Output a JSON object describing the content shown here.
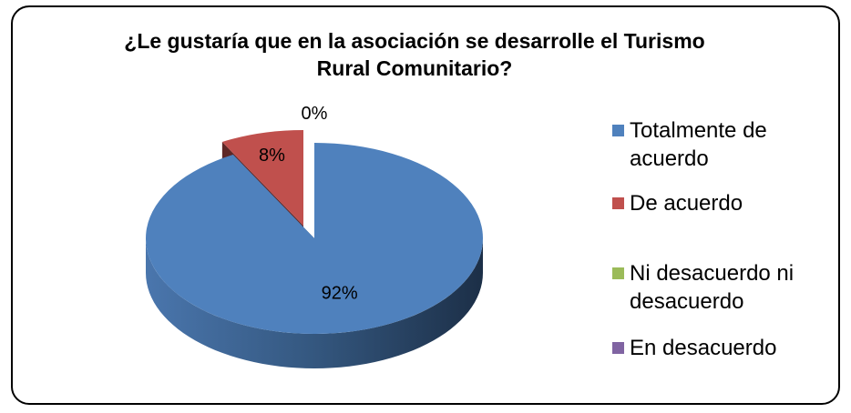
{
  "chart_data": {
    "type": "pie",
    "title": "¿Le gustaría que en la asociación se desarrolle el Turismo Rural Comunitario?",
    "categories": [
      "Totalmente de acuerdo",
      "De acuerdo",
      "Ni desacuerdo ni desacuerdo",
      "En desacuerdo"
    ],
    "values": [
      92,
      8,
      0,
      0
    ],
    "value_labels": [
      "92%",
      "8%",
      "0%",
      null
    ],
    "colors": [
      "#4f81bd",
      "#c0504d",
      "#9bbb59",
      "#8064a2"
    ],
    "legend": "right"
  }
}
